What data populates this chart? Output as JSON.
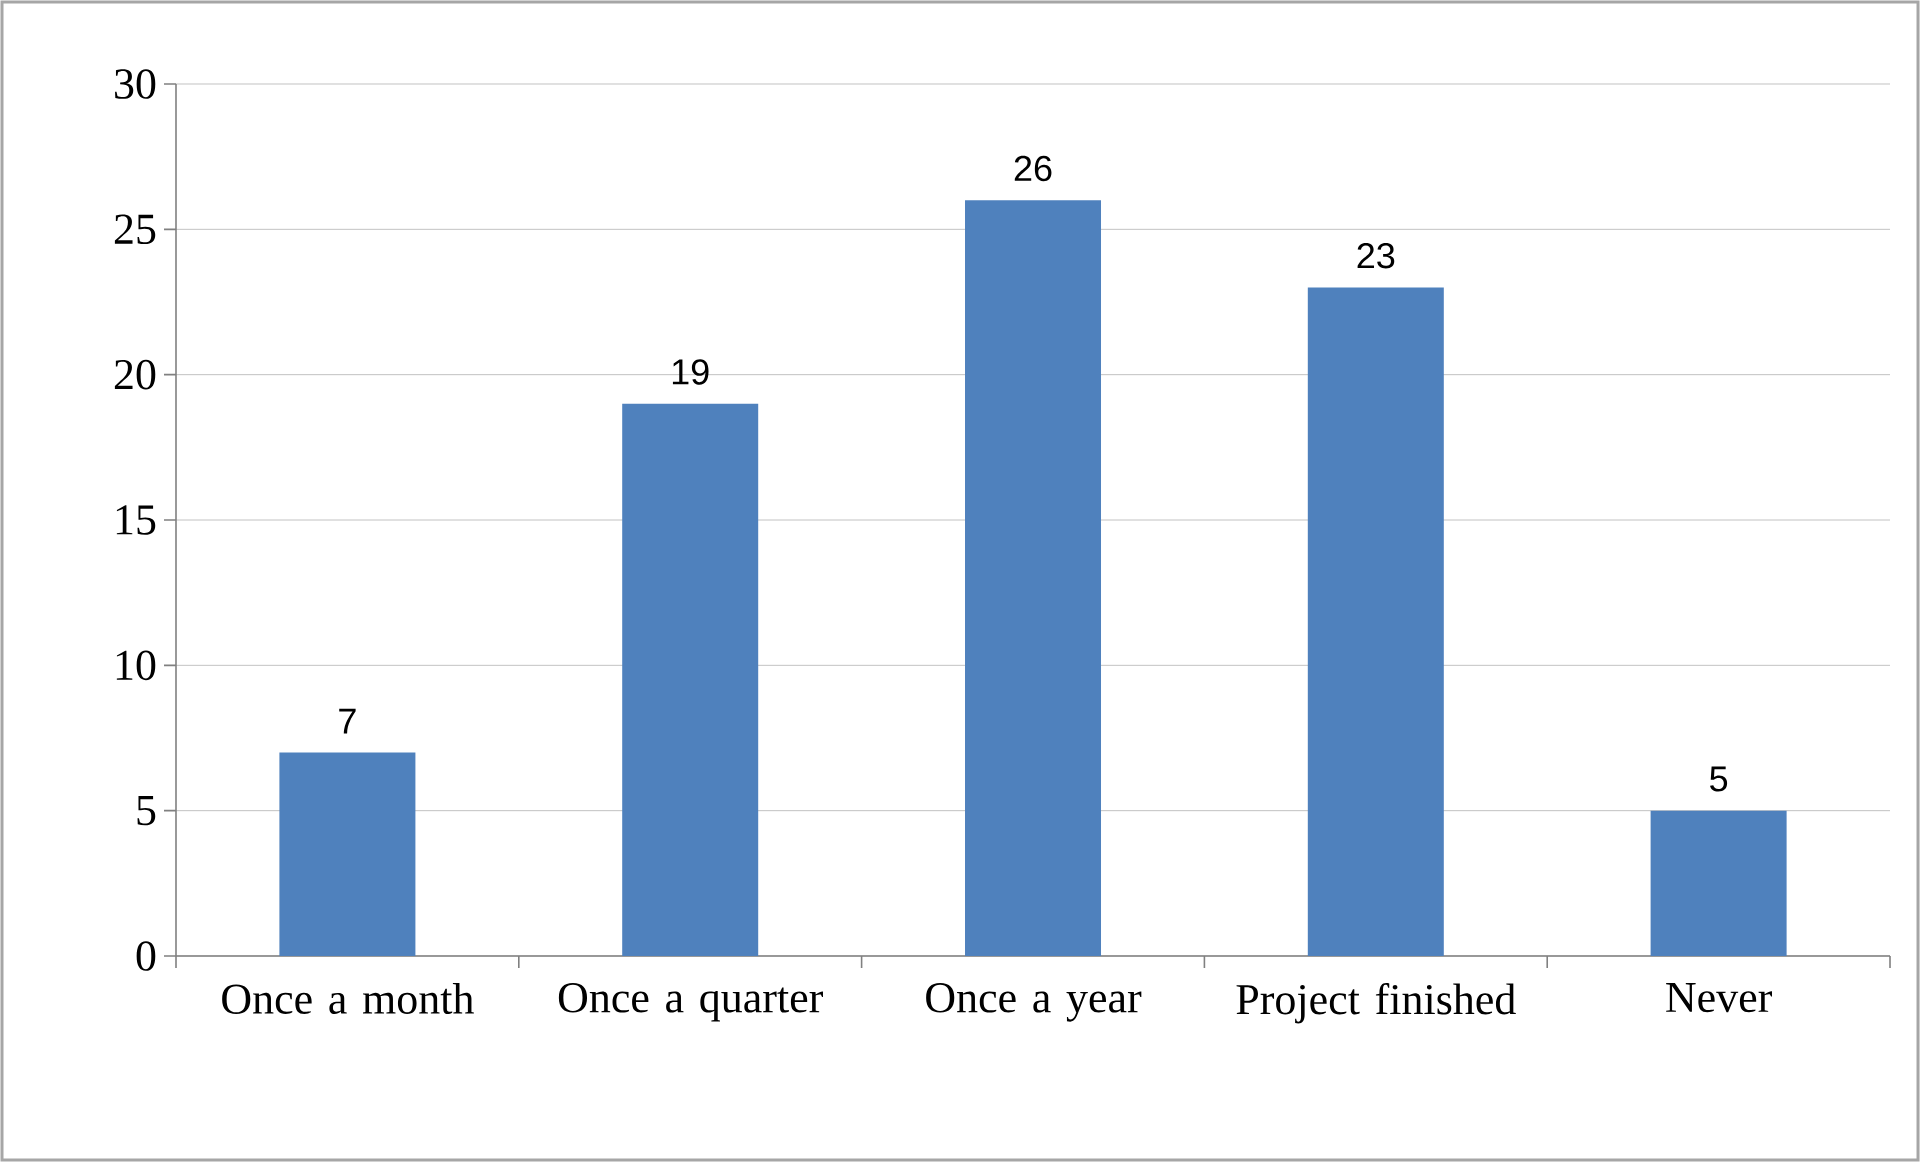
{
  "chart_data": {
    "type": "bar",
    "categories": [
      "Once a month",
      "Once a quarter",
      "Once a year",
      "Project finished",
      "Never"
    ],
    "values": [
      7,
      19,
      26,
      23,
      5
    ],
    "color": "#4f81bd",
    "ylim": [
      0,
      30
    ],
    "yticks": [
      0,
      5,
      10,
      15,
      20,
      25,
      30
    ],
    "grid": "y",
    "data_labels": true
  }
}
